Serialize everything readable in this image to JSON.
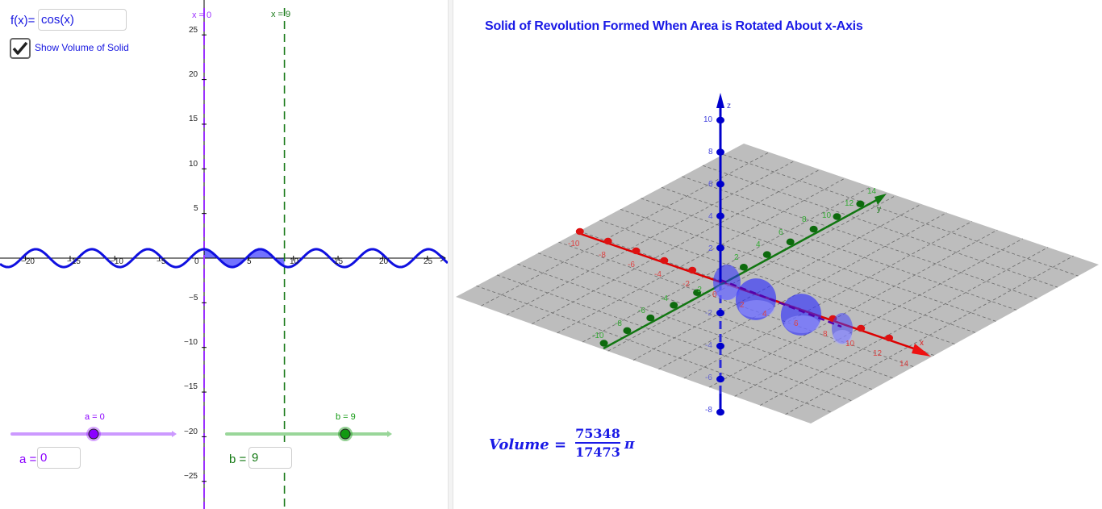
{
  "left_view": {
    "function": {
      "label": "f(x)=",
      "value": "cos(x)"
    },
    "checkbox": {
      "label": "Show Volume of Solid",
      "checked": true
    },
    "x_axis_ticks": [
      "−20",
      "−15",
      "−10",
      "−5",
      "0",
      "5",
      "10",
      "15",
      "20",
      "25"
    ],
    "y_axis_ticks": [
      "25",
      "20",
      "15",
      "10",
      "5",
      "−5",
      "−10",
      "−15",
      "−20",
      "−25"
    ],
    "line_a_label": "x = 0",
    "line_b_label": "x = 9",
    "slider_a": {
      "caption": "a = 0",
      "label": "a =",
      "value": "0",
      "color": "#8b00ff",
      "track_color": "#cc99ff"
    },
    "slider_b": {
      "caption": "b = 9",
      "label": "b =",
      "value": "9",
      "color": "#008000",
      "track_color": "#99d699"
    },
    "colors": {
      "curve": "#1010e0",
      "fill": "#4040ff",
      "axis": "#000000"
    }
  },
  "right_view": {
    "title": "Solid of Revolution Formed When Area is Rotated About x-Axis",
    "axes": {
      "x": {
        "name": "x",
        "ticks": [
          "-10",
          "-8",
          "-6",
          "-4",
          "-2",
          "0",
          "2",
          "4",
          "6",
          "8",
          "10",
          "12",
          "14"
        ],
        "color": "#dd0000"
      },
      "y": {
        "name": "y",
        "ticks": [
          "-10",
          "-8",
          "-6",
          "-4",
          "-2",
          "2",
          "4",
          "6",
          "8",
          "10",
          "12",
          "14"
        ],
        "color": "#006600"
      },
      "z": {
        "name": "z",
        "ticks": [
          "10",
          "8",
          "6",
          "4",
          "2",
          "-2",
          "-4",
          "-6",
          "-8"
        ],
        "color": "#0000cc"
      }
    },
    "plane_color": "#bdbdbd",
    "volume": {
      "label": "Volume =",
      "numerator": "75348",
      "denominator": "17473",
      "pi": "π"
    }
  }
}
